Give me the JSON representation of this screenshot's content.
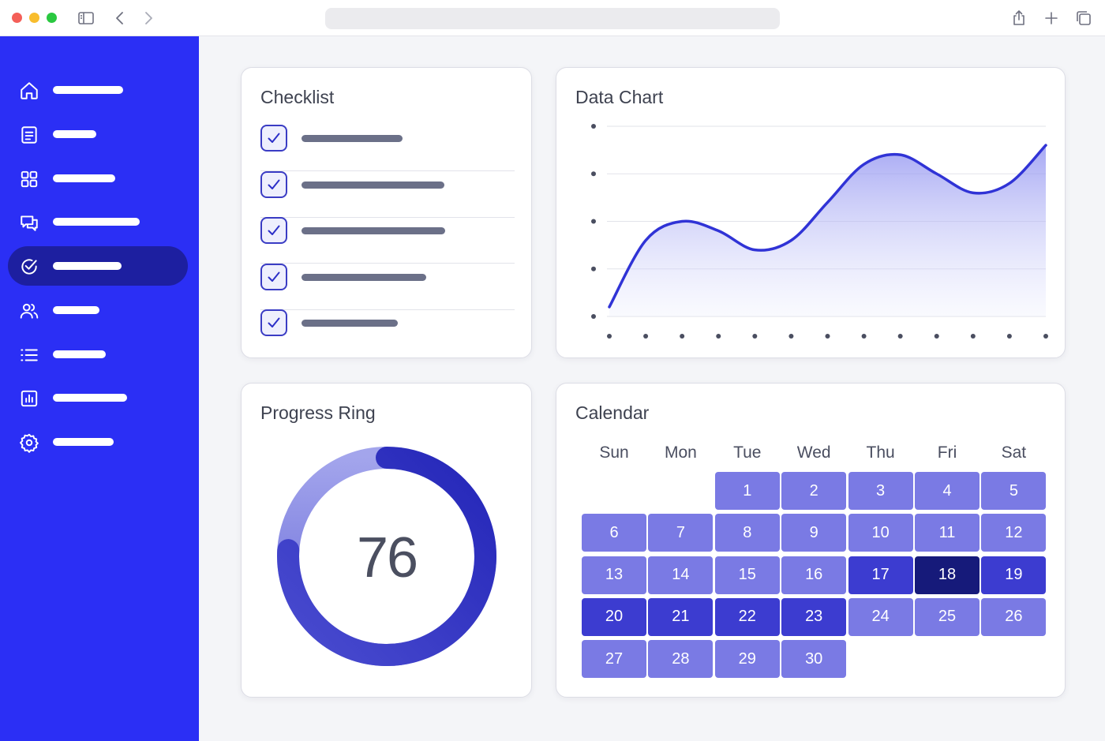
{
  "colors": {
    "sidebar": "#2b2ff5",
    "sidebar_active": "#1d1fa0",
    "accent": "#3033d6",
    "traffic_red": "#f45f58",
    "traffic_yellow": "#f8bd2d",
    "traffic_green": "#2ac840"
  },
  "browser": {
    "icons": [
      "sidebar-toggle-icon",
      "back-chevron-icon",
      "forward-chevron-icon",
      "share-icon",
      "new-tab-plus-icon",
      "tabs-overview-icon"
    ]
  },
  "sidebar": {
    "items": [
      {
        "icon": "home-icon",
        "active": false
      },
      {
        "icon": "document-icon",
        "active": false
      },
      {
        "icon": "grid-icon",
        "active": false
      },
      {
        "icon": "chat-icon",
        "active": false
      },
      {
        "icon": "check-circle-icon",
        "active": true
      },
      {
        "icon": "users-icon",
        "active": false
      },
      {
        "icon": "list-icon",
        "active": false
      },
      {
        "icon": "bar-chart-icon",
        "active": false
      },
      {
        "icon": "gear-icon",
        "active": false
      }
    ]
  },
  "checklist": {
    "title": "Checklist",
    "items": [
      {
        "checked": true
      },
      {
        "checked": true
      },
      {
        "checked": true
      },
      {
        "checked": true
      },
      {
        "checked": true
      }
    ]
  },
  "chart": {
    "title": "Data Chart",
    "chart_data": {
      "type": "area",
      "x": [
        0,
        1,
        2,
        3,
        4,
        5,
        6,
        7,
        8,
        9,
        10,
        11,
        12
      ],
      "series": [
        {
          "values": [
            5,
            40,
            50,
            45,
            35,
            40,
            60,
            80,
            85,
            75,
            65,
            70,
            90
          ]
        }
      ],
      "ylim": [
        0,
        100
      ],
      "grid": true,
      "legend": "none"
    }
  },
  "progress": {
    "title": "Progress Ring",
    "value": "76",
    "fraction": 0.76
  },
  "calendar": {
    "title": "Calendar",
    "weekdays": [
      "Sun",
      "Mon",
      "Tue",
      "Wed",
      "Thu",
      "Fri",
      "Sat"
    ],
    "first_weekday": 2,
    "days": [
      {
        "d": "1",
        "level": 1
      },
      {
        "d": "2",
        "level": 1
      },
      {
        "d": "3",
        "level": 1
      },
      {
        "d": "4",
        "level": 1
      },
      {
        "d": "5",
        "level": 1
      },
      {
        "d": "6",
        "level": 1
      },
      {
        "d": "7",
        "level": 1
      },
      {
        "d": "8",
        "level": 1
      },
      {
        "d": "9",
        "level": 1
      },
      {
        "d": "10",
        "level": 1
      },
      {
        "d": "11",
        "level": 1
      },
      {
        "d": "12",
        "level": 1
      },
      {
        "d": "13",
        "level": 1
      },
      {
        "d": "14",
        "level": 1
      },
      {
        "d": "15",
        "level": 1
      },
      {
        "d": "16",
        "level": 1
      },
      {
        "d": "17",
        "level": 3
      },
      {
        "d": "18",
        "level": 4
      },
      {
        "d": "19",
        "level": 3
      },
      {
        "d": "20",
        "level": 3
      },
      {
        "d": "21",
        "level": 3
      },
      {
        "d": "22",
        "level": 3
      },
      {
        "d": "23",
        "level": 3
      },
      {
        "d": "24",
        "level": 1
      },
      {
        "d": "25",
        "level": 1
      },
      {
        "d": "26",
        "level": 1
      },
      {
        "d": "27",
        "level": 1
      },
      {
        "d": "28",
        "level": 1
      },
      {
        "d": "29",
        "level": 1
      },
      {
        "d": "30",
        "level": 1
      }
    ],
    "level_colors": {
      "1": "#7a7ae4",
      "2": "#5f5fdc",
      "3": "#3c3cd0",
      "4": "#161a7a"
    }
  }
}
